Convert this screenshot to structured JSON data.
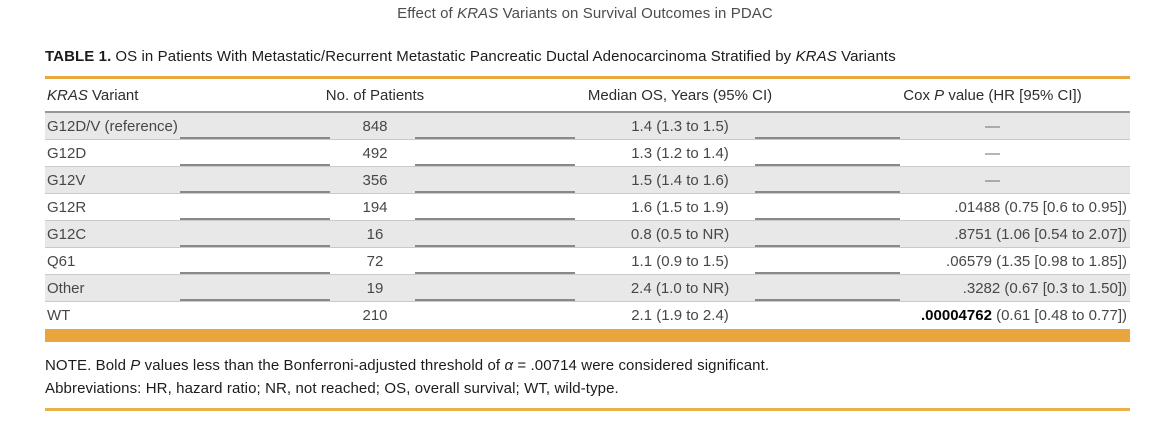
{
  "running_title": {
    "prefix": "Effect of ",
    "gene": "KRAS",
    "suffix": " Variants on Survival Outcomes in PDAC"
  },
  "table": {
    "caption": {
      "label": "TABLE 1.",
      "prefix": "OS in Patients With Metastatic/Recurrent Metastatic Pancreatic Ductal Adenocarcinoma Stratified by ",
      "gene": "KRAS",
      "suffix": " Variants"
    },
    "columns": {
      "variant": {
        "gene": "KRAS",
        "rest": " Variant"
      },
      "patients": "No. of Patients",
      "median_os": "Median OS, Years (95% CI)",
      "cox": {
        "prefix": "Cox ",
        "italic": "P",
        "suffix": " value (HR [95% CI])"
      }
    },
    "rows": [
      {
        "variant": "G12D/V (reference)",
        "patients": "848",
        "median_os": "1.4 (1.3 to 1.5)",
        "cox": "—"
      },
      {
        "variant": "G12D",
        "patients": "492",
        "median_os": "1.3 (1.2 to 1.4)",
        "cox": "—"
      },
      {
        "variant": "G12V",
        "patients": "356",
        "median_os": "1.5 (1.4 to 1.6)",
        "cox": "—"
      },
      {
        "variant": "G12R",
        "patients": "194",
        "median_os": "1.6 (1.5 to 1.9)",
        "cox": ".01488 (0.75 [0.6 to 0.95])"
      },
      {
        "variant": "G12C",
        "patients": "16",
        "median_os": "0.8 (0.5 to NR)",
        "cox": ".8751 (1.06 [0.54 to 2.07])"
      },
      {
        "variant": "Q61",
        "patients": "72",
        "median_os": "1.1 (0.9 to 1.5)",
        "cox": ".06579 (1.35 [0.98 to 1.85])"
      },
      {
        "variant": "Other",
        "patients": "19",
        "median_os": "2.4 (1.0 to NR)",
        "cox": ".3282 (0.67 [0.3 to 1.50])"
      },
      {
        "variant": "WT",
        "patients": "210",
        "median_os": "2.1 (1.9 to 2.4)",
        "cox_bold": ".00004762",
        "cox_rest": " (0.61 [0.48 to 0.77])"
      }
    ]
  },
  "footnotes": {
    "note": {
      "p1": "NOTE. Bold ",
      "i1": "P",
      "p2": " values less than the Bonferroni-adjusted threshold of ",
      "i2": "α",
      "p3": " = .00714 were considered significant."
    },
    "abbreviations": "Abbreviations: HR, hazard ratio; NR, not reached; OS, overall survival; WT, wild-type."
  },
  "colors": {
    "accent_gold": "#E8A63C",
    "row_shade": "#E8E8E8",
    "text": "#1c1c1c"
  }
}
